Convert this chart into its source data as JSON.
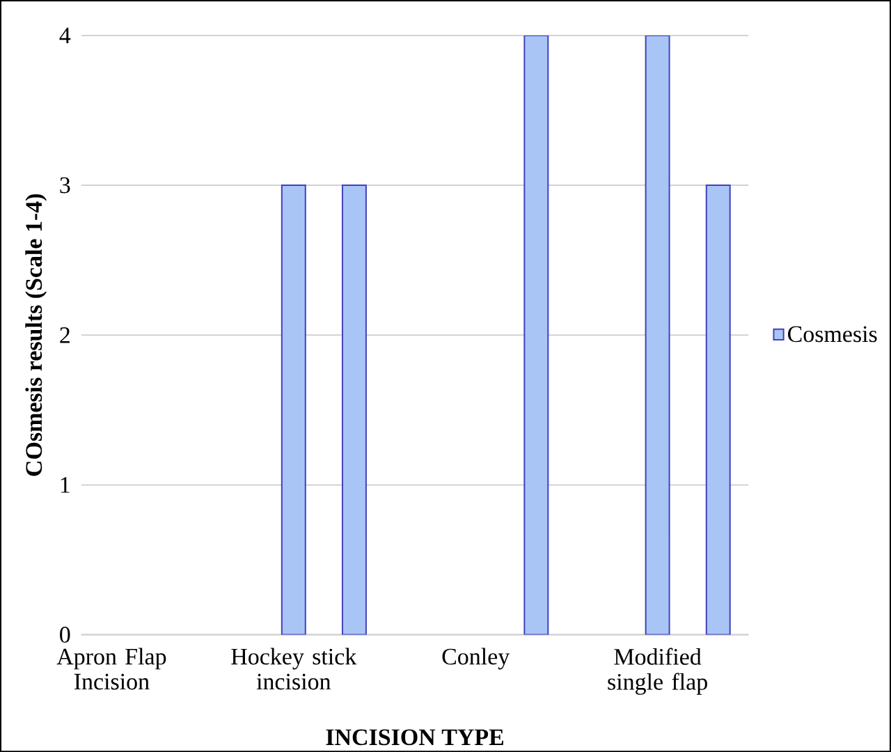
{
  "chart_data": {
    "type": "bar",
    "xlabel": "INCISION TYPE",
    "ylabel": "COsmesis results (Scale 1-4)",
    "categories": [
      "Apron Flap Incision",
      null,
      null,
      "Hockey stick incision",
      null,
      null,
      "Conley",
      null,
      null,
      "Modified single flap",
      null
    ],
    "series": [
      {
        "name": "Cosmesis",
        "color": "#a9c5f5",
        "values": [
          null,
          null,
          null,
          3,
          3,
          null,
          null,
          4,
          null,
          4,
          3
        ]
      }
    ],
    "ylim": [
      0,
      4
    ],
    "yticks": [
      0,
      1,
      2,
      3,
      4
    ],
    "grid": "y",
    "legend": "right"
  }
}
